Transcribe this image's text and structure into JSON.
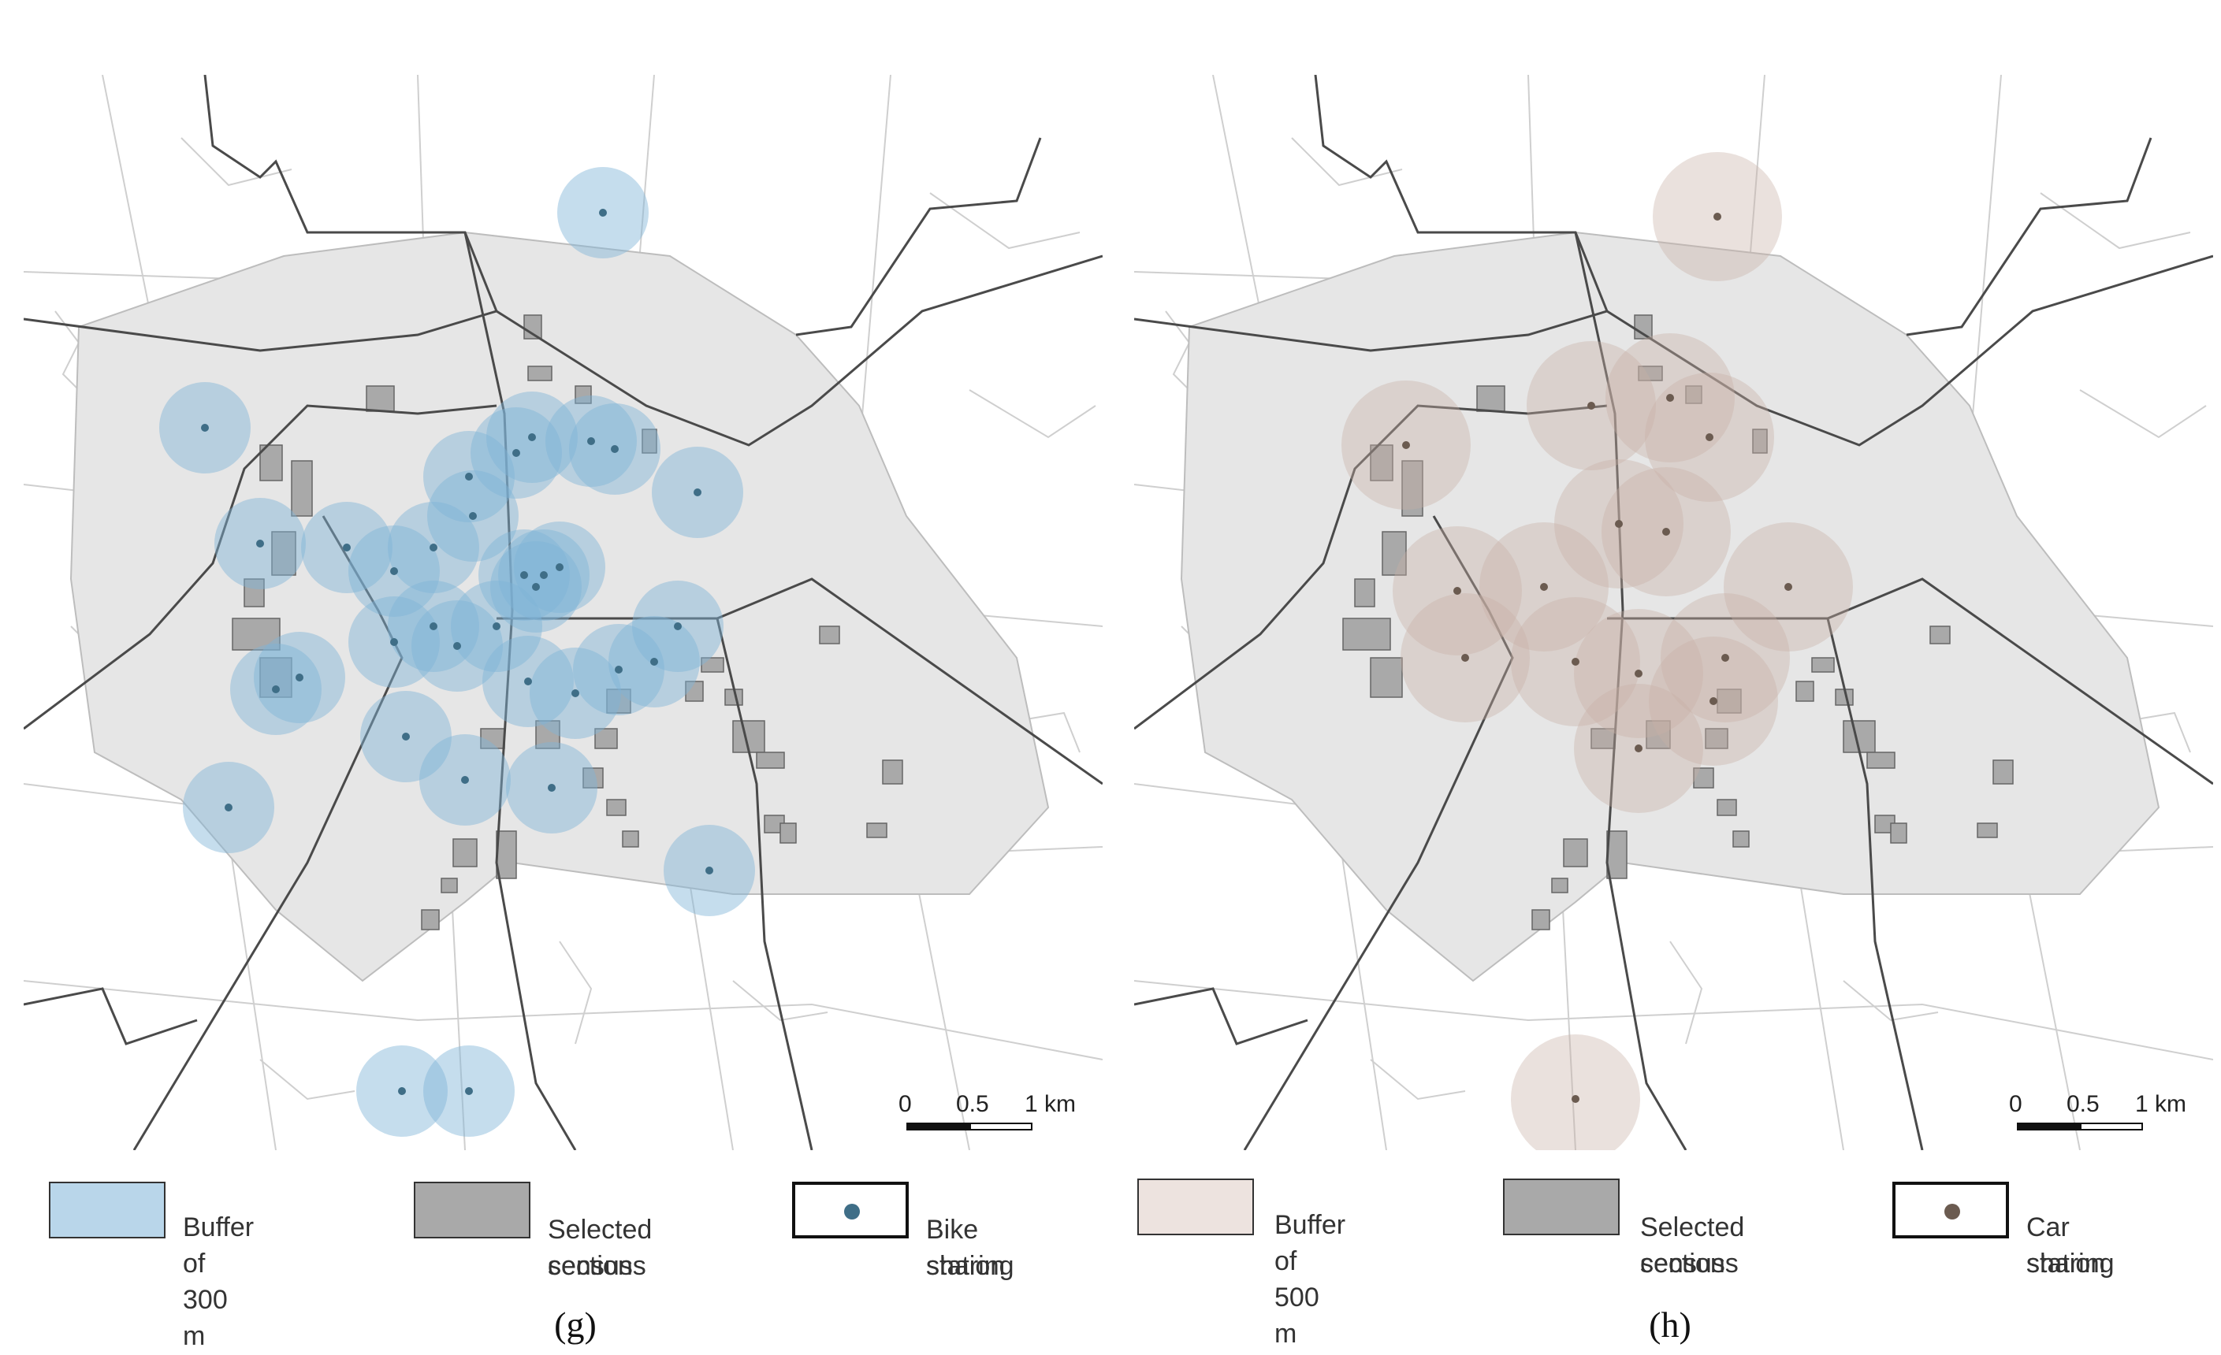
{
  "panels": [
    {
      "id": "g",
      "caption": "(g)",
      "buffer_color": "#7fb4d6",
      "station_color": "#3f6e87",
      "legend": {
        "buffer_label": "Buffer of 300 m",
        "census_label_line1": "Selected census",
        "census_label_line2": "sections",
        "station_label_line1": "Bike sharing",
        "station_label_line2": "station"
      },
      "scale": {
        "t0": "0",
        "t1": "0.5",
        "t2": "1 km"
      }
    },
    {
      "id": "h",
      "caption": "(h)",
      "buffer_color": "#c9b1a6",
      "station_color": "#6b5b50",
      "legend": {
        "buffer_label": "Buffer of 500 m",
        "census_label_line1": "Selected census",
        "census_label_line2": "sections",
        "station_label_line1": "Car sharing",
        "station_label_line2": "station"
      },
      "scale": {
        "t0": "0",
        "t1": "0.5",
        "t2": "1 km"
      }
    }
  ],
  "colors": {
    "census_fill": "#a9a9a9",
    "urban_area": "#e6e6e6",
    "street_lines": "#c8c8c8",
    "district_lines": "#4a4a4a"
  }
}
